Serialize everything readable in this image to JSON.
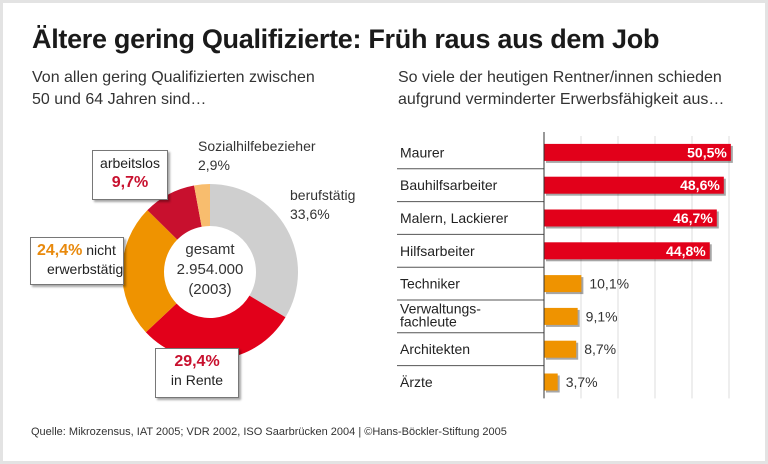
{
  "title": "Ältere gering Qualifizierte: Früh raus aus dem Job",
  "footer": "Quelle: Mikrozensus, IAT 2005; VDR 2002, ISO Saarbrücken 2004  | ©Hans-Böckler-Stiftung 2005",
  "chart_data": [
    {
      "type": "pie",
      "subtitle_lines": [
        "Von allen gering Qualifizierten zwischen",
        "50 und 64 Jahren sind…"
      ],
      "center_label": [
        "gesamt",
        "2.954.000",
        "(2003)"
      ],
      "slices": [
        {
          "name": "berufstätig",
          "value": 33.6,
          "label": "33,6%",
          "color": "#cfcfcf"
        },
        {
          "name": "in Rente",
          "value": 29.4,
          "label": "29,4%",
          "color": "#e2001a"
        },
        {
          "name": "nicht erwerbstätig",
          "label_pre": "nicht",
          "label_post": "erwerbstätig",
          "value": 24.4,
          "label": "24,4%",
          "color": "#ef9300"
        },
        {
          "name": "arbeitslos",
          "value": 9.7,
          "label": "9,7%",
          "color": "#c8102e"
        },
        {
          "name": "Sozialhilfebezieher",
          "value": 2.9,
          "label": "2,9%",
          "color": "#f8bd6e"
        }
      ]
    },
    {
      "type": "bar",
      "orientation": "horizontal",
      "subtitle_lines": [
        "So viele der heutigen Rentner/innen schieden",
        "aufgrund verminderter Erwerbsfähigkeit aus…"
      ],
      "categories": [
        "Maurer",
        "Bauhilfsarbeiter",
        "Malern, Lackierer",
        "Hilfsarbeiter",
        "Techniker",
        "Verwaltungs-\nfachleute",
        "Architekten",
        "Ärzte"
      ],
      "values": [
        50.5,
        48.6,
        46.7,
        44.8,
        10.1,
        9.1,
        8.7,
        3.7
      ],
      "labels": [
        "50,5%",
        "48,6%",
        "46,7%",
        "44,8%",
        "10,1%",
        "9,1%",
        "8,7%",
        "3,7%"
      ],
      "colors": [
        "#e2001a",
        "#e2001a",
        "#e2001a",
        "#e2001a",
        "#ef9300",
        "#ef9300",
        "#ef9300",
        "#ef9300"
      ],
      "xlim": [
        0,
        50
      ],
      "grid": true
    }
  ]
}
